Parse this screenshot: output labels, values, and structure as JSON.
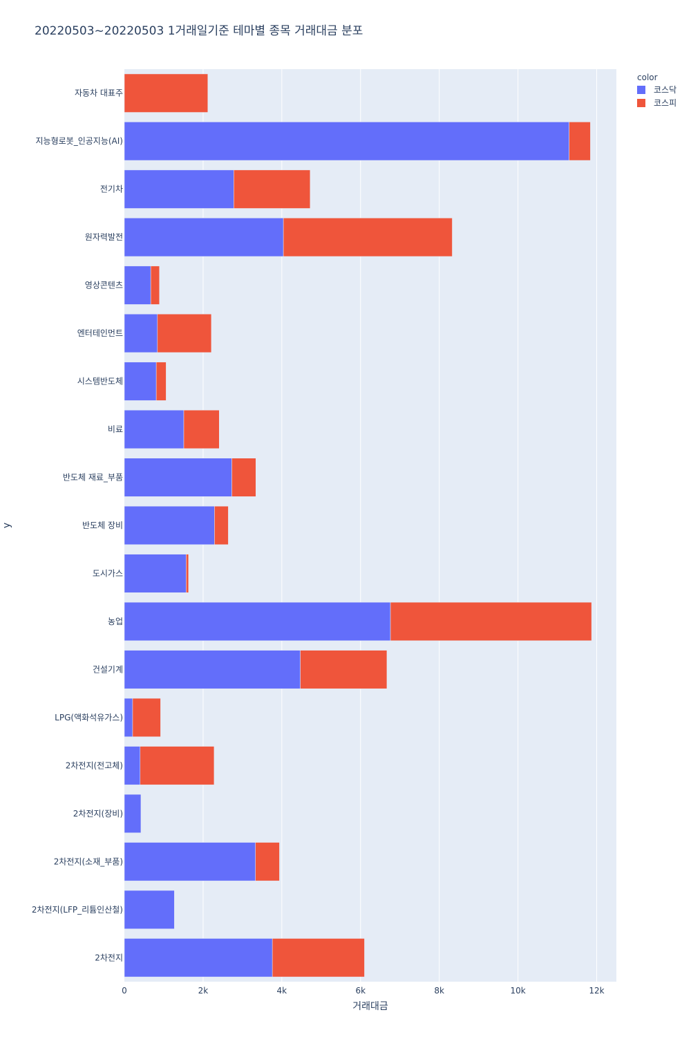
{
  "chart_data": {
    "type": "bar",
    "orientation": "horizontal",
    "barmode": "stack",
    "title": "20220503~20220503 1거래일기준 테마별 종목 거래대금 분포",
    "xlabel": "거래대금",
    "ylabel": "y",
    "xlim": [
      0,
      12500
    ],
    "x_ticks": [
      0,
      2000,
      4000,
      6000,
      8000,
      10000,
      12000
    ],
    "x_tick_labels": [
      "0",
      "2k",
      "4k",
      "6k",
      "8k",
      "10k",
      "12k"
    ],
    "grid": true,
    "legend": {
      "title": "color",
      "position": "top-right"
    },
    "categories": [
      "자동차 대표주",
      "지능형로봇_인공지능(AI)",
      "전기차",
      "원자력발전",
      "영상콘텐츠",
      "엔터테인먼트",
      "시스템반도체",
      "비료",
      "반도체 재료_부품",
      "반도체 장비",
      "도시가스",
      "농업",
      "건설기계",
      "LPG(액화석유가스)",
      "2차전지(전고체)",
      "2차전지(장비)",
      "2차전지(소재_부품)",
      "2차전지(LFP_리튬인산철)",
      "2차전지"
    ],
    "series": [
      {
        "name": "코스닥",
        "color": "#636efa",
        "values": [
          0,
          11300,
          2780,
          4040,
          670,
          840,
          810,
          1510,
          2730,
          2290,
          1570,
          6760,
          4470,
          210,
          400,
          420,
          3330,
          1270,
          3760
        ]
      },
      {
        "name": "코스피",
        "color": "#ef553b",
        "values": [
          2120,
          540,
          1940,
          4290,
          220,
          1370,
          250,
          900,
          610,
          350,
          60,
          5110,
          2200,
          710,
          1880,
          0,
          610,
          0,
          2340
        ]
      }
    ]
  }
}
